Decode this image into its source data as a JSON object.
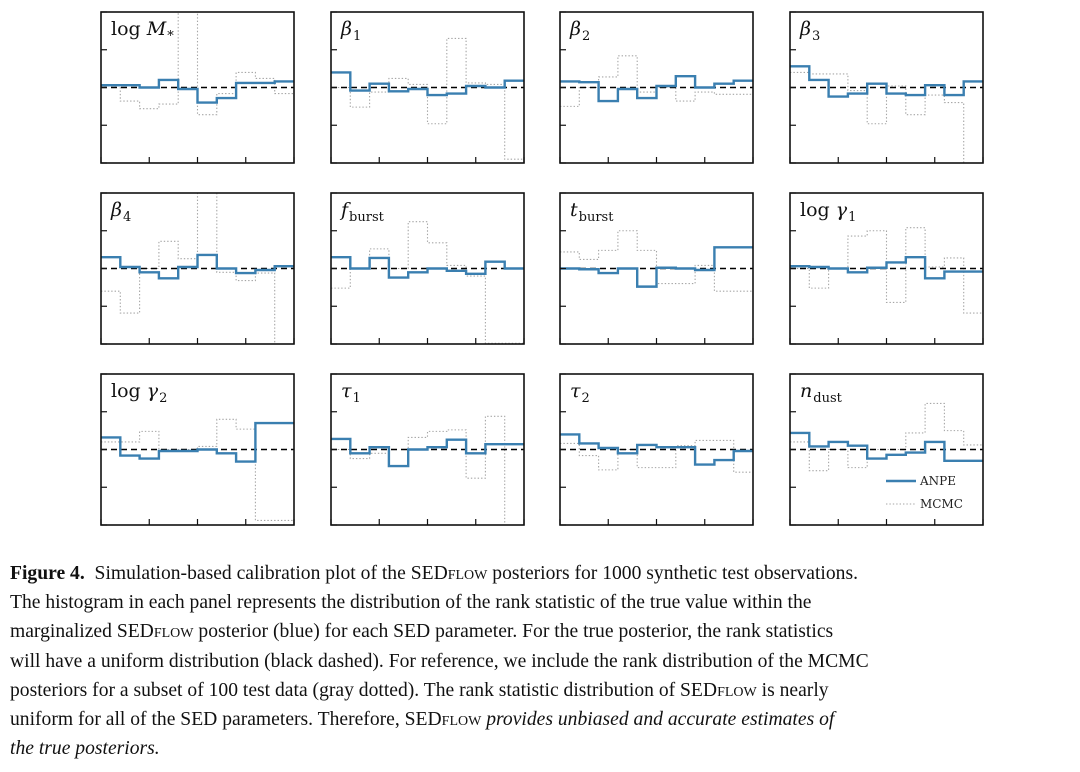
{
  "chart_data": {
    "type": "step-histogram-grid",
    "description_legend": [
      "ANPE",
      "MCMC"
    ],
    "series_colors": {
      "ANPE": "#3a7fb0",
      "MCMC": "#a6a6a6",
      "uniform": "#000000"
    },
    "xlim": [
      0,
      1
    ],
    "ylim": [
      -1,
      1
    ],
    "uniform_level": 0,
    "bins": 10,
    "panels": [
      {
        "label": "log M",
        "label_sub": "*",
        "label_style": "log-italic",
        "anpe": [
          0.03,
          0.03,
          0.0,
          0.1,
          -0.02,
          -0.2,
          -0.14,
          0.06,
          0.06,
          0.08
        ],
        "mcmc": [
          0.02,
          -0.18,
          -0.28,
          -0.22,
          1.0,
          -0.36,
          -0.08,
          0.2,
          0.12,
          -0.08
        ]
      },
      {
        "label": "β",
        "label_sub": "1",
        "label_style": "italic",
        "anpe": [
          0.2,
          -0.04,
          0.05,
          -0.05,
          -0.02,
          -0.1,
          -0.08,
          0.02,
          0.0,
          0.09
        ],
        "mcmc": [
          0.0,
          -0.26,
          -0.06,
          0.12,
          0.04,
          -0.48,
          0.65,
          0.06,
          0.04,
          -0.95
        ]
      },
      {
        "label": "β",
        "label_sub": "2",
        "label_style": "italic",
        "anpe": [
          0.08,
          0.07,
          -0.18,
          -0.02,
          -0.14,
          0.02,
          0.15,
          0.0,
          0.05,
          0.09
        ],
        "mcmc": [
          -0.25,
          0.0,
          0.14,
          0.42,
          -0.06,
          0.0,
          -0.18,
          -0.06,
          -0.09,
          -0.09
        ]
      },
      {
        "label": "β",
        "label_sub": "3",
        "label_style": "italic",
        "anpe": [
          0.28,
          0.1,
          -0.12,
          -0.08,
          0.05,
          -0.08,
          -0.1,
          0.03,
          -0.1,
          0.08
        ],
        "mcmc": [
          0.2,
          0.18,
          0.18,
          -0.04,
          -0.48,
          0.02,
          -0.36,
          -0.1,
          -0.2,
          -1.0
        ]
      },
      {
        "label": "β",
        "label_sub": "4",
        "label_style": "italic",
        "anpe": [
          0.15,
          0.02,
          -0.05,
          -0.13,
          0.02,
          0.18,
          0.0,
          -0.06,
          -0.02,
          0.03
        ],
        "mcmc": [
          -0.3,
          -0.59,
          0.0,
          0.36,
          0.13,
          1.0,
          -0.05,
          -0.16,
          -0.06,
          -1.0
        ]
      },
      {
        "label": "f",
        "label_sub": "burst",
        "label_style": "italic",
        "anpe": [
          0.15,
          0.0,
          0.14,
          -0.12,
          -0.05,
          0.0,
          -0.03,
          -0.07,
          0.09,
          0.0
        ],
        "mcmc": [
          -0.26,
          0.0,
          0.26,
          0.0,
          0.62,
          0.34,
          0.04,
          -0.1,
          -0.99,
          -0.99
        ]
      },
      {
        "label": "t",
        "label_sub": "burst",
        "label_style": "italic",
        "anpe": [
          0.0,
          -0.01,
          -0.06,
          0.0,
          -0.24,
          0.01,
          0.0,
          -0.02,
          0.28,
          0.28
        ],
        "mcmc": [
          0.22,
          0.12,
          0.24,
          0.5,
          0.24,
          -0.2,
          -0.2,
          0.04,
          -0.3,
          -0.3
        ]
      },
      {
        "label": "log γ",
        "label_sub": "1",
        "label_style": "log-italic",
        "anpe": [
          0.03,
          0.02,
          0.0,
          -0.05,
          0.01,
          0.08,
          0.15,
          -0.13,
          -0.04,
          -0.04
        ],
        "mcmc": [
          0.0,
          -0.26,
          0.0,
          0.43,
          0.5,
          -0.45,
          0.54,
          0.02,
          0.14,
          -0.59
        ]
      },
      {
        "label": "log γ",
        "label_sub": "2",
        "label_style": "log-italic",
        "anpe": [
          0.16,
          -0.08,
          -0.12,
          -0.02,
          -0.02,
          0.0,
          -0.05,
          -0.16,
          0.35,
          0.35
        ],
        "mcmc": [
          0.1,
          0.1,
          0.24,
          0.0,
          0.0,
          0.04,
          0.4,
          0.27,
          -0.94,
          -0.94
        ]
      },
      {
        "label": "τ",
        "label_sub": "1",
        "label_style": "italic",
        "anpe": [
          0.14,
          -0.05,
          0.03,
          -0.22,
          0.0,
          0.03,
          0.13,
          -0.05,
          0.07,
          0.07
        ],
        "mcmc": [
          0.0,
          -0.12,
          -0.05,
          -0.22,
          0.16,
          0.24,
          0.26,
          -0.38,
          0.44,
          -1.0
        ]
      },
      {
        "label": "τ",
        "label_sub": "2",
        "label_style": "italic",
        "anpe": [
          0.2,
          0.08,
          0.02,
          -0.05,
          0.06,
          0.03,
          0.03,
          -0.2,
          -0.14,
          -0.02
        ],
        "mcmc": [
          0.08,
          -0.08,
          -0.27,
          0.0,
          -0.24,
          -0.24,
          0.05,
          0.12,
          0.12,
          -0.3
        ]
      },
      {
        "label": "n",
        "label_sub": "dust",
        "label_style": "italic",
        "anpe": [
          0.22,
          0.04,
          0.1,
          0.05,
          -0.12,
          -0.07,
          -0.04,
          0.1,
          -0.15,
          -0.15
        ],
        "mcmc": [
          0.1,
          -0.28,
          0.0,
          -0.24,
          0.0,
          0.0,
          0.22,
          0.61,
          0.25,
          0.06
        ]
      }
    ]
  },
  "legend": {
    "anpe_label": "ANPE",
    "mcmc_label": "MCMC"
  },
  "caption": {
    "figure_label": "Figure 4.",
    "line1_a": "Simulation-based calibration plot of the SED",
    "line1_sc": "flow",
    "line1_b": "posteriors for 1000 synthetic test observations.",
    "line2": "The histogram in each panel represents the distribution of the rank statistic of the true value within the",
    "line3_a": "marginalized SED",
    "line3_sc": "flow",
    "line3_b": "posterior (blue) for each SED parameter. For the true posterior, the rank statistics",
    "line4": "will have a uniform distribution (black dashed). For reference, we include the rank distribution of the MCMC",
    "line5": "posteriors for a subset of 100 test data (gray dotted). The rank statistic distribution of SED",
    "line5_sc": "flow",
    "line5_b": "is nearly",
    "line6_a": "uniform for all of the SED parameters. Therefore, SED",
    "line6_sc": "flow",
    "line6_em": "provides unbiased and accurate estimates of",
    "line7_em": "the true posteriors."
  }
}
